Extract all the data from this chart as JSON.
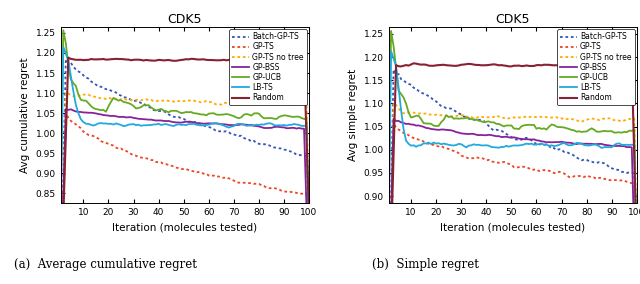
{
  "title": "CDK5",
  "xlabel": "Iteration (molecules tested)",
  "ylabel_left": "Avg cumulative regret",
  "ylabel_right": "Avg simple regret",
  "caption_left": "(a)  Average cumulative regret",
  "caption_right": "(b)  Simple regret",
  "xlim": [
    1,
    100
  ],
  "ylim_left": [
    0.825,
    1.265
  ],
  "ylim_right": [
    0.885,
    1.265
  ],
  "yticks_left": [
    0.85,
    0.9,
    0.95,
    1.0,
    1.05,
    1.1,
    1.15,
    1.2,
    1.25
  ],
  "yticks_right": [
    0.9,
    0.95,
    1.0,
    1.05,
    1.1,
    1.15,
    1.2,
    1.25
  ],
  "xticks": [
    10,
    20,
    30,
    40,
    50,
    60,
    70,
    80,
    90,
    100
  ],
  "colors": {
    "Batch-GP-TS": "#3355BB",
    "GP-TS": "#EE4422",
    "GP-TS no tree": "#FFAA00",
    "GP-BSS": "#882299",
    "GP-UCB": "#66AA22",
    "LB-TS": "#22AADD",
    "Random": "#882233"
  },
  "linestyles": {
    "Batch-GP-TS": "dotted",
    "GP-TS": "dotted",
    "GP-TS no tree": "dotted",
    "GP-BSS": "solid",
    "GP-UCB": "solid",
    "LB-TS": "solid",
    "Random": "solid"
  },
  "linewidths": {
    "Batch-GP-TS": 1.3,
    "GP-TS": 1.3,
    "GP-TS no tree": 1.3,
    "GP-BSS": 1.3,
    "GP-UCB": 1.3,
    "LB-TS": 1.3,
    "Random": 1.5
  }
}
